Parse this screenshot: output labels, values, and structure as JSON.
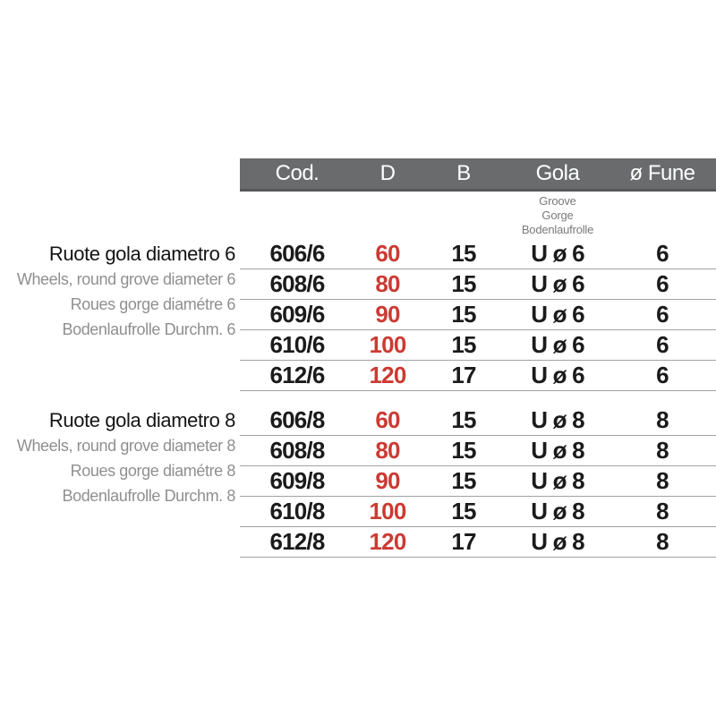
{
  "table": {
    "columns": [
      "Cod.",
      "D",
      "B",
      "Gola",
      "ø Fune"
    ],
    "gola_subtitles": [
      "Groove",
      "Gorge",
      "Bodenlaufrolle"
    ]
  },
  "sections": [
    {
      "title": "Ruote gola diametro 6",
      "translations": [
        "Wheels, round grove diameter 6",
        "Roues gorge diamétre 6",
        "Bodenlaufrolle Durchm. 6"
      ],
      "rows": [
        {
          "cod": "606/6",
          "d": "60",
          "b": "15",
          "gola": "U ø 6",
          "fune": "6"
        },
        {
          "cod": "608/6",
          "d": "80",
          "b": "15",
          "gola": "U ø 6",
          "fune": "6"
        },
        {
          "cod": "609/6",
          "d": "90",
          "b": "15",
          "gola": "U ø 6",
          "fune": "6"
        },
        {
          "cod": "610/6",
          "d": "100",
          "b": "15",
          "gola": "U ø 6",
          "fune": "6"
        },
        {
          "cod": "612/6",
          "d": "120",
          "b": "17",
          "gola": "U ø 6",
          "fune": "6"
        }
      ]
    },
    {
      "title": "Ruote gola diametro 8",
      "translations": [
        "Wheels, round grove diameter 8",
        "Roues gorge diamétre 8",
        "Bodenlaufrolle Durchm. 8"
      ],
      "rows": [
        {
          "cod": "606/8",
          "d": "60",
          "b": "15",
          "gola": "U ø 8",
          "fune": "8"
        },
        {
          "cod": "608/8",
          "d": "80",
          "b": "15",
          "gola": "U ø 8",
          "fune": "8"
        },
        {
          "cod": "609/8",
          "d": "90",
          "b": "15",
          "gola": "U ø 8",
          "fune": "8"
        },
        {
          "cod": "610/8",
          "d": "100",
          "b": "15",
          "gola": "U ø 8",
          "fune": "8"
        },
        {
          "cod": "612/8",
          "d": "120",
          "b": "17",
          "gola": "U ø 8",
          "fune": "8"
        }
      ]
    }
  ],
  "colors": {
    "header_bg": "#6a6b6d",
    "header_border": "#57585b",
    "accent_red": "#cc3a33",
    "muted_text": "#8f8f91",
    "row_line": "#a2a2a4"
  }
}
